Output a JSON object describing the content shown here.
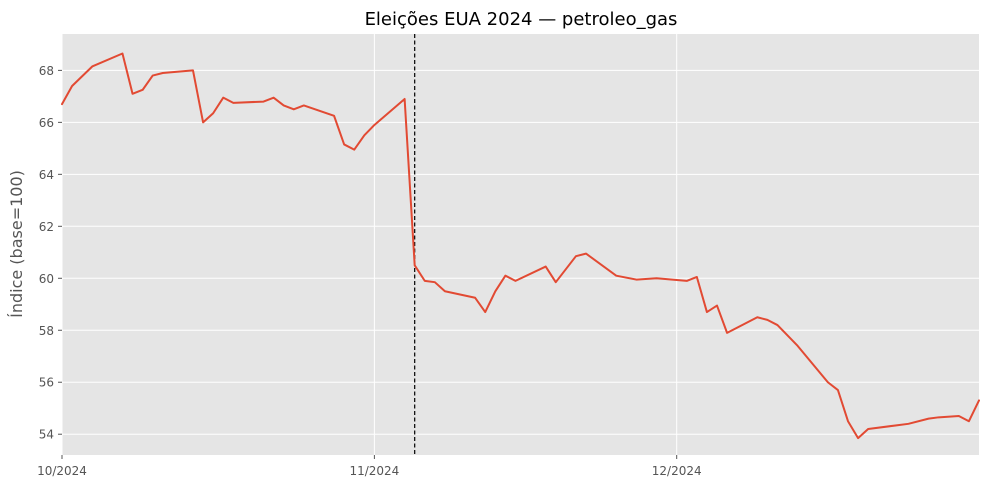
{
  "chart_data": {
    "type": "line",
    "title": "Eleições EUA 2024 — petroleo_gas",
    "xlabel": "",
    "ylabel": "Índice (base=100)",
    "xlim": [
      "2024-10-01",
      "2024-12-31"
    ],
    "ylim": [
      53.2,
      69.4
    ],
    "x_ticks": [
      {
        "date": "2024-10-01",
        "label": "10/2024"
      },
      {
        "date": "2024-11-01",
        "label": "11/2024"
      },
      {
        "date": "2024-12-01",
        "label": "12/2024"
      }
    ],
    "y_ticks": [
      54,
      56,
      58,
      60,
      62,
      64,
      66,
      68
    ],
    "grid": true,
    "background": "#e5e5e5",
    "line_color": "#e24a33",
    "event": {
      "date": "2024-11-05",
      "style": "dashed",
      "color": "#000000"
    },
    "series": [
      {
        "name": "",
        "points": [
          [
            "2024-10-01",
            66.7
          ],
          [
            "2024-10-02",
            67.4
          ],
          [
            "2024-10-04",
            68.15
          ],
          [
            "2024-10-07",
            68.65
          ],
          [
            "2024-10-08",
            67.1
          ],
          [
            "2024-10-09",
            67.25
          ],
          [
            "2024-10-10",
            67.8
          ],
          [
            "2024-10-11",
            67.9
          ],
          [
            "2024-10-14",
            68.0
          ],
          [
            "2024-10-15",
            66.0
          ],
          [
            "2024-10-16",
            66.35
          ],
          [
            "2024-10-17",
            66.95
          ],
          [
            "2024-10-18",
            66.75
          ],
          [
            "2024-10-21",
            66.8
          ],
          [
            "2024-10-22",
            66.95
          ],
          [
            "2024-10-23",
            66.65
          ],
          [
            "2024-10-24",
            66.5
          ],
          [
            "2024-10-25",
            66.65
          ],
          [
            "2024-10-28",
            66.25
          ],
          [
            "2024-10-29",
            65.15
          ],
          [
            "2024-10-30",
            64.95
          ],
          [
            "2024-10-31",
            65.5
          ],
          [
            "2024-11-01",
            65.9
          ],
          [
            "2024-11-04",
            66.9
          ],
          [
            "2024-11-05",
            60.5
          ],
          [
            "2024-11-06",
            59.9
          ],
          [
            "2024-11-07",
            59.85
          ],
          [
            "2024-11-08",
            59.5
          ],
          [
            "2024-11-11",
            59.25
          ],
          [
            "2024-11-12",
            58.7
          ],
          [
            "2024-11-13",
            59.5
          ],
          [
            "2024-11-14",
            60.1
          ],
          [
            "2024-11-15",
            59.9
          ],
          [
            "2024-11-18",
            60.45
          ],
          [
            "2024-11-19",
            59.85
          ],
          [
            "2024-11-20",
            60.35
          ],
          [
            "2024-11-21",
            60.85
          ],
          [
            "2024-11-22",
            60.95
          ],
          [
            "2024-11-25",
            60.1
          ],
          [
            "2024-11-27",
            59.95
          ],
          [
            "2024-11-29",
            60.0
          ],
          [
            "2024-12-02",
            59.9
          ],
          [
            "2024-12-03",
            60.05
          ],
          [
            "2024-12-04",
            58.7
          ],
          [
            "2024-12-05",
            58.95
          ],
          [
            "2024-12-06",
            57.9
          ],
          [
            "2024-12-09",
            58.5
          ],
          [
            "2024-12-10",
            58.4
          ],
          [
            "2024-12-11",
            58.2
          ],
          [
            "2024-12-12",
            57.8
          ],
          [
            "2024-12-13",
            57.4
          ],
          [
            "2024-12-16",
            56.0
          ],
          [
            "2024-12-17",
            55.7
          ],
          [
            "2024-12-18",
            54.5
          ],
          [
            "2024-12-19",
            53.85
          ],
          [
            "2024-12-20",
            54.2
          ],
          [
            "2024-12-23",
            54.35
          ],
          [
            "2024-12-24",
            54.4
          ],
          [
            "2024-12-26",
            54.6
          ],
          [
            "2024-12-27",
            54.65
          ],
          [
            "2024-12-29",
            54.7
          ],
          [
            "2024-12-30",
            54.5
          ],
          [
            "2024-12-31",
            55.3
          ]
        ]
      }
    ]
  }
}
